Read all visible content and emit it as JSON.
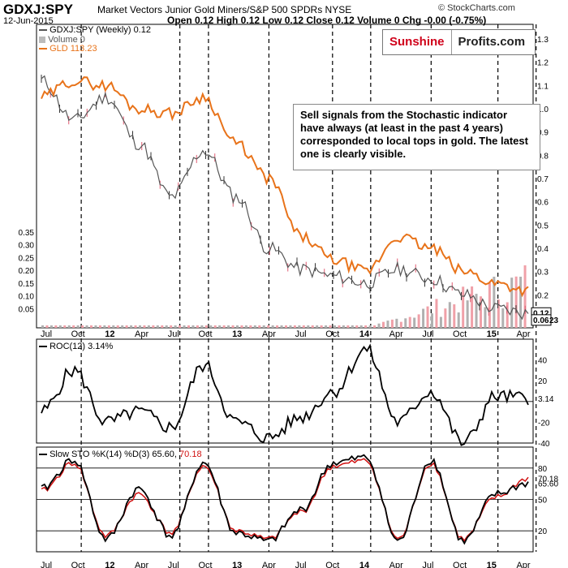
{
  "header": {
    "symbol": "GDXJ:SPY",
    "description": "Market Vectors Junior Gold Miners/S&P 500 SPDRs NYSE",
    "date": "12-Jun-2015",
    "ohlc": "Open 0.12  High 0.12  Low 0.12  Close 0.12  Volume 0  Chg -0.00 (-0.75%)",
    "copyright": "© StockCharts.com"
  },
  "logo": {
    "part1": "Sunshine",
    "part2": "Profits.com"
  },
  "annotation": "Sell signals from the Stochastic indicator have always (at least in the past 4 years) corresponded to local tops in gold. The latest one is clearly visible.",
  "legend": {
    "main": "GDXJ:SPY (Weekly) 0.12",
    "volume": "Volume 0",
    "gld": "GLD 113.23",
    "roc": "ROC(12) 3.14%",
    "sto_label": "Slow STO %K(14) %D(3) 65.60,",
    "sto_d": "70.18"
  },
  "colors": {
    "price": "#555555",
    "gld": "#e8731a",
    "volume": "#f0a0a8",
    "sto_d": "#d11111",
    "logo_red": "#d0021b"
  },
  "chart_data": [
    {
      "type": "line",
      "title": "GDXJ:SPY (Weekly) 0.12",
      "x": [
        "Jul",
        "Oct",
        "12",
        "Apr",
        "Jul",
        "Oct",
        "13",
        "Apr",
        "Jul",
        "Oct",
        "14",
        "Apr",
        "Jul",
        "Oct",
        "15",
        "Apr"
      ],
      "series": [
        {
          "name": "GDXJ:SPY",
          "values": [
            1.12,
            0.95,
            1.05,
            0.85,
            0.62,
            0.82,
            0.62,
            0.4,
            0.31,
            0.28,
            0.25,
            0.31,
            0.27,
            0.2,
            0.14,
            0.12
          ]
        },
        {
          "name": "GLD",
          "values": [
            1.05,
            1.12,
            1.1,
            1.0,
            0.98,
            1.05,
            0.85,
            0.7,
            0.45,
            0.35,
            0.3,
            0.45,
            0.4,
            0.3,
            0.25,
            0.22
          ]
        }
      ],
      "right_ticks": [
        "1.3",
        "1.2",
        "1.1",
        "1.0",
        "0.9",
        "0.8",
        "0.7",
        "0.6",
        "0.5",
        "0.4",
        "0.3",
        "0.2",
        "0.1"
      ],
      "left_ticks": [
        "0.35",
        "0.30",
        "0.25",
        "0.20",
        "0.15",
        "0.10",
        "0.05"
      ],
      "last_values": [
        "0.12",
        "0.06",
        "23"
      ]
    },
    {
      "type": "line",
      "title": "ROC(12) 3.14%",
      "x": [
        "Jul",
        "Oct",
        "12",
        "Apr",
        "Jul",
        "Oct",
        "13",
        "Apr",
        "Jul",
        "Oct",
        "14",
        "Apr",
        "Jul",
        "Oct",
        "15",
        "Apr"
      ],
      "series": [
        {
          "name": "ROC(12)",
          "values": [
            -10,
            30,
            -20,
            -10,
            -25,
            35,
            -20,
            -35,
            -15,
            10,
            50,
            -20,
            10,
            -40,
            5,
            3.14
          ]
        }
      ],
      "ylim": [
        -40,
        60
      ],
      "right_ticks": [
        "40",
        "20",
        "3.14",
        "-20",
        "-40"
      ]
    },
    {
      "type": "line",
      "title": "Slow STO %K(14) %D(3) 65.60, 70.18",
      "x": [
        "Jul",
        "Oct",
        "12",
        "Apr",
        "Jul",
        "Oct",
        "13",
        "Apr",
        "Jul",
        "Oct",
        "14",
        "Apr",
        "Jul",
        "Oct",
        "15",
        "Apr"
      ],
      "series": [
        {
          "name": "%K(14)",
          "values": [
            60,
            88,
            12,
            60,
            15,
            85,
            18,
            10,
            40,
            85,
            90,
            10,
            88,
            10,
            55,
            65.6
          ]
        },
        {
          "name": "%D(3)",
          "values": [
            58,
            85,
            15,
            55,
            18,
            82,
            20,
            12,
            38,
            82,
            87,
            12,
            85,
            12,
            52,
            70.18
          ]
        }
      ],
      "ylim": [
        0,
        100
      ],
      "right_ticks": [
        "80",
        "70.18",
        "65.60",
        "50",
        "20"
      ]
    }
  ]
}
